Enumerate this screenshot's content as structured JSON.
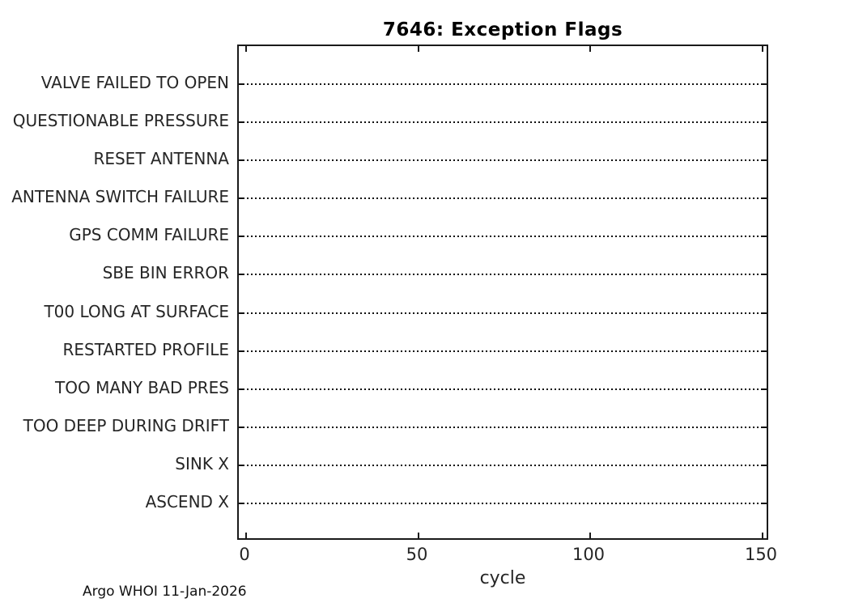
{
  "chart_data": {
    "type": "scatter",
    "title": "7646: Exception Flags",
    "xlabel": "cycle",
    "ylabel": "",
    "x_ticks": [
      0,
      50,
      100,
      150
    ],
    "xlim": [
      -2,
      152
    ],
    "categories": [
      "VALVE FAILED TO OPEN",
      "QUESTIONABLE PRESSURE",
      "RESET ANTENNA",
      "ANTENNA SWITCH FAILURE",
      "GPS COMM FAILURE",
      "SBE BIN ERROR",
      "T00 LONG AT SURFACE",
      "RESTARTED PROFILE",
      "TOO MANY BAD PRES",
      "TOO DEEP DURING DRIFT",
      "SINK X",
      "ASCEND X"
    ],
    "series": [],
    "points": [],
    "grid": {
      "horizontal": "dotted",
      "vertical": "none"
    },
    "legend_position": "none",
    "colors": {
      "background": "#ffffff",
      "axis": "#1a1a1a",
      "gridline": "#111111",
      "tick_text": "#262626",
      "title_text": "#000000"
    }
  },
  "footer": {
    "caption": "Argo WHOI 11-Jan-2026"
  }
}
